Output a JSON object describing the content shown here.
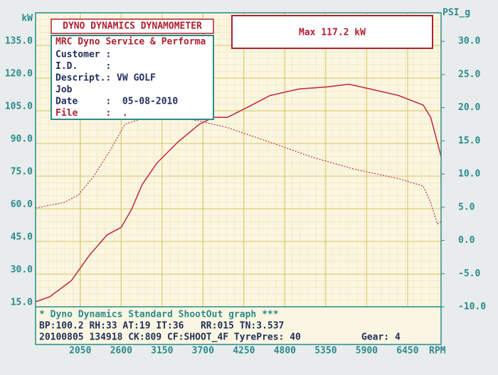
{
  "chart_data": {
    "type": "line",
    "title": "DYNO DYNAMICS DYNAMOMETER",
    "max_label": "Max 117.2 kW",
    "info_title": "MRC Dyno Service & Performa",
    "info": [
      "Customer :",
      "I.D.     :",
      "Descript.: VW GOLF",
      "Job",
      "Date     :  05-08-2010",
      "File     :  ."
    ],
    "footer": [
      "* Dyno Dynamics Standard ShootOut graph ***",
      "BP:100.2 RH:33 AT:19 IT:36   RR:015 TN:3.537",
      "20100805 134918 CK:809 CF:SHOOT_4F TyrePres: 40"
    ],
    "gear": "Gear: 4",
    "y_label": "kW",
    "y2_label": "PSI_g",
    "x_label": "RPM",
    "xlim": [
      1450,
      6900
    ],
    "xticks": [
      2050,
      2600,
      3150,
      3700,
      4250,
      4800,
      5350,
      5900,
      6450
    ],
    "ylim": [
      15,
      150
    ],
    "yticks": [
      {
        "value": 15,
        "label": "15.0"
      },
      {
        "value": 30,
        "label": "30.0"
      },
      {
        "value": 45,
        "label": "45.0"
      },
      {
        "value": 60,
        "label": "60.0"
      },
      {
        "value": 75,
        "label": "75.0"
      },
      {
        "value": 90,
        "label": "90.0"
      },
      {
        "value": 105,
        "label": "105.0"
      },
      {
        "value": 120,
        "label": "120.0"
      },
      {
        "value": 135,
        "label": "135.0"
      }
    ],
    "y2lim": [
      -10,
      34.3
    ],
    "y2ticks": [
      {
        "value": -10,
        "label": "-10.0"
      },
      {
        "value": -5,
        "label": "-5.0"
      },
      {
        "value": 0,
        "label": "0.0"
      },
      {
        "value": 5,
        "label": "5.0"
      },
      {
        "value": 10,
        "label": "10.0"
      },
      {
        "value": 15,
        "label": "15.0"
      },
      {
        "value": 20,
        "label": "20.0"
      },
      {
        "value": 25,
        "label": "25.0"
      },
      {
        "value": 30,
        "label": "30.0"
      }
    ],
    "grid": true,
    "series": [
      {
        "color": "#c2304e",
        "dash": false,
        "axis": "y",
        "x": [
          1450,
          1640,
          1930,
          2170,
          2410,
          2600,
          2740,
          2880,
          3080,
          3360,
          3650,
          3840,
          4030,
          4320,
          4600,
          4990,
          5370,
          5660,
          5950,
          6330,
          6660,
          6760,
          6900
        ],
        "values": [
          17.3,
          19.6,
          27,
          38.5,
          48,
          51.5,
          59.7,
          71,
          81,
          90.6,
          98.8,
          102,
          102,
          107,
          112,
          115,
          116,
          117.2,
          115,
          112,
          107.6,
          102,
          84
        ]
      },
      {
        "color": "#c2304e",
        "dash": true,
        "axis": "y2",
        "x": [
          1450,
          1830,
          2020,
          2220,
          2460,
          2650,
          3080,
          3650,
          4030,
          4600,
          5180,
          5750,
          6330,
          6660,
          6760,
          6850,
          6900
        ],
        "values": [
          4.9,
          5.7,
          6.8,
          9.5,
          13.7,
          17.5,
          19.1,
          18,
          17,
          14.8,
          12.5,
          10.7,
          9.3,
          8.2,
          5.7,
          2.5,
          2.8
        ]
      }
    ]
  }
}
